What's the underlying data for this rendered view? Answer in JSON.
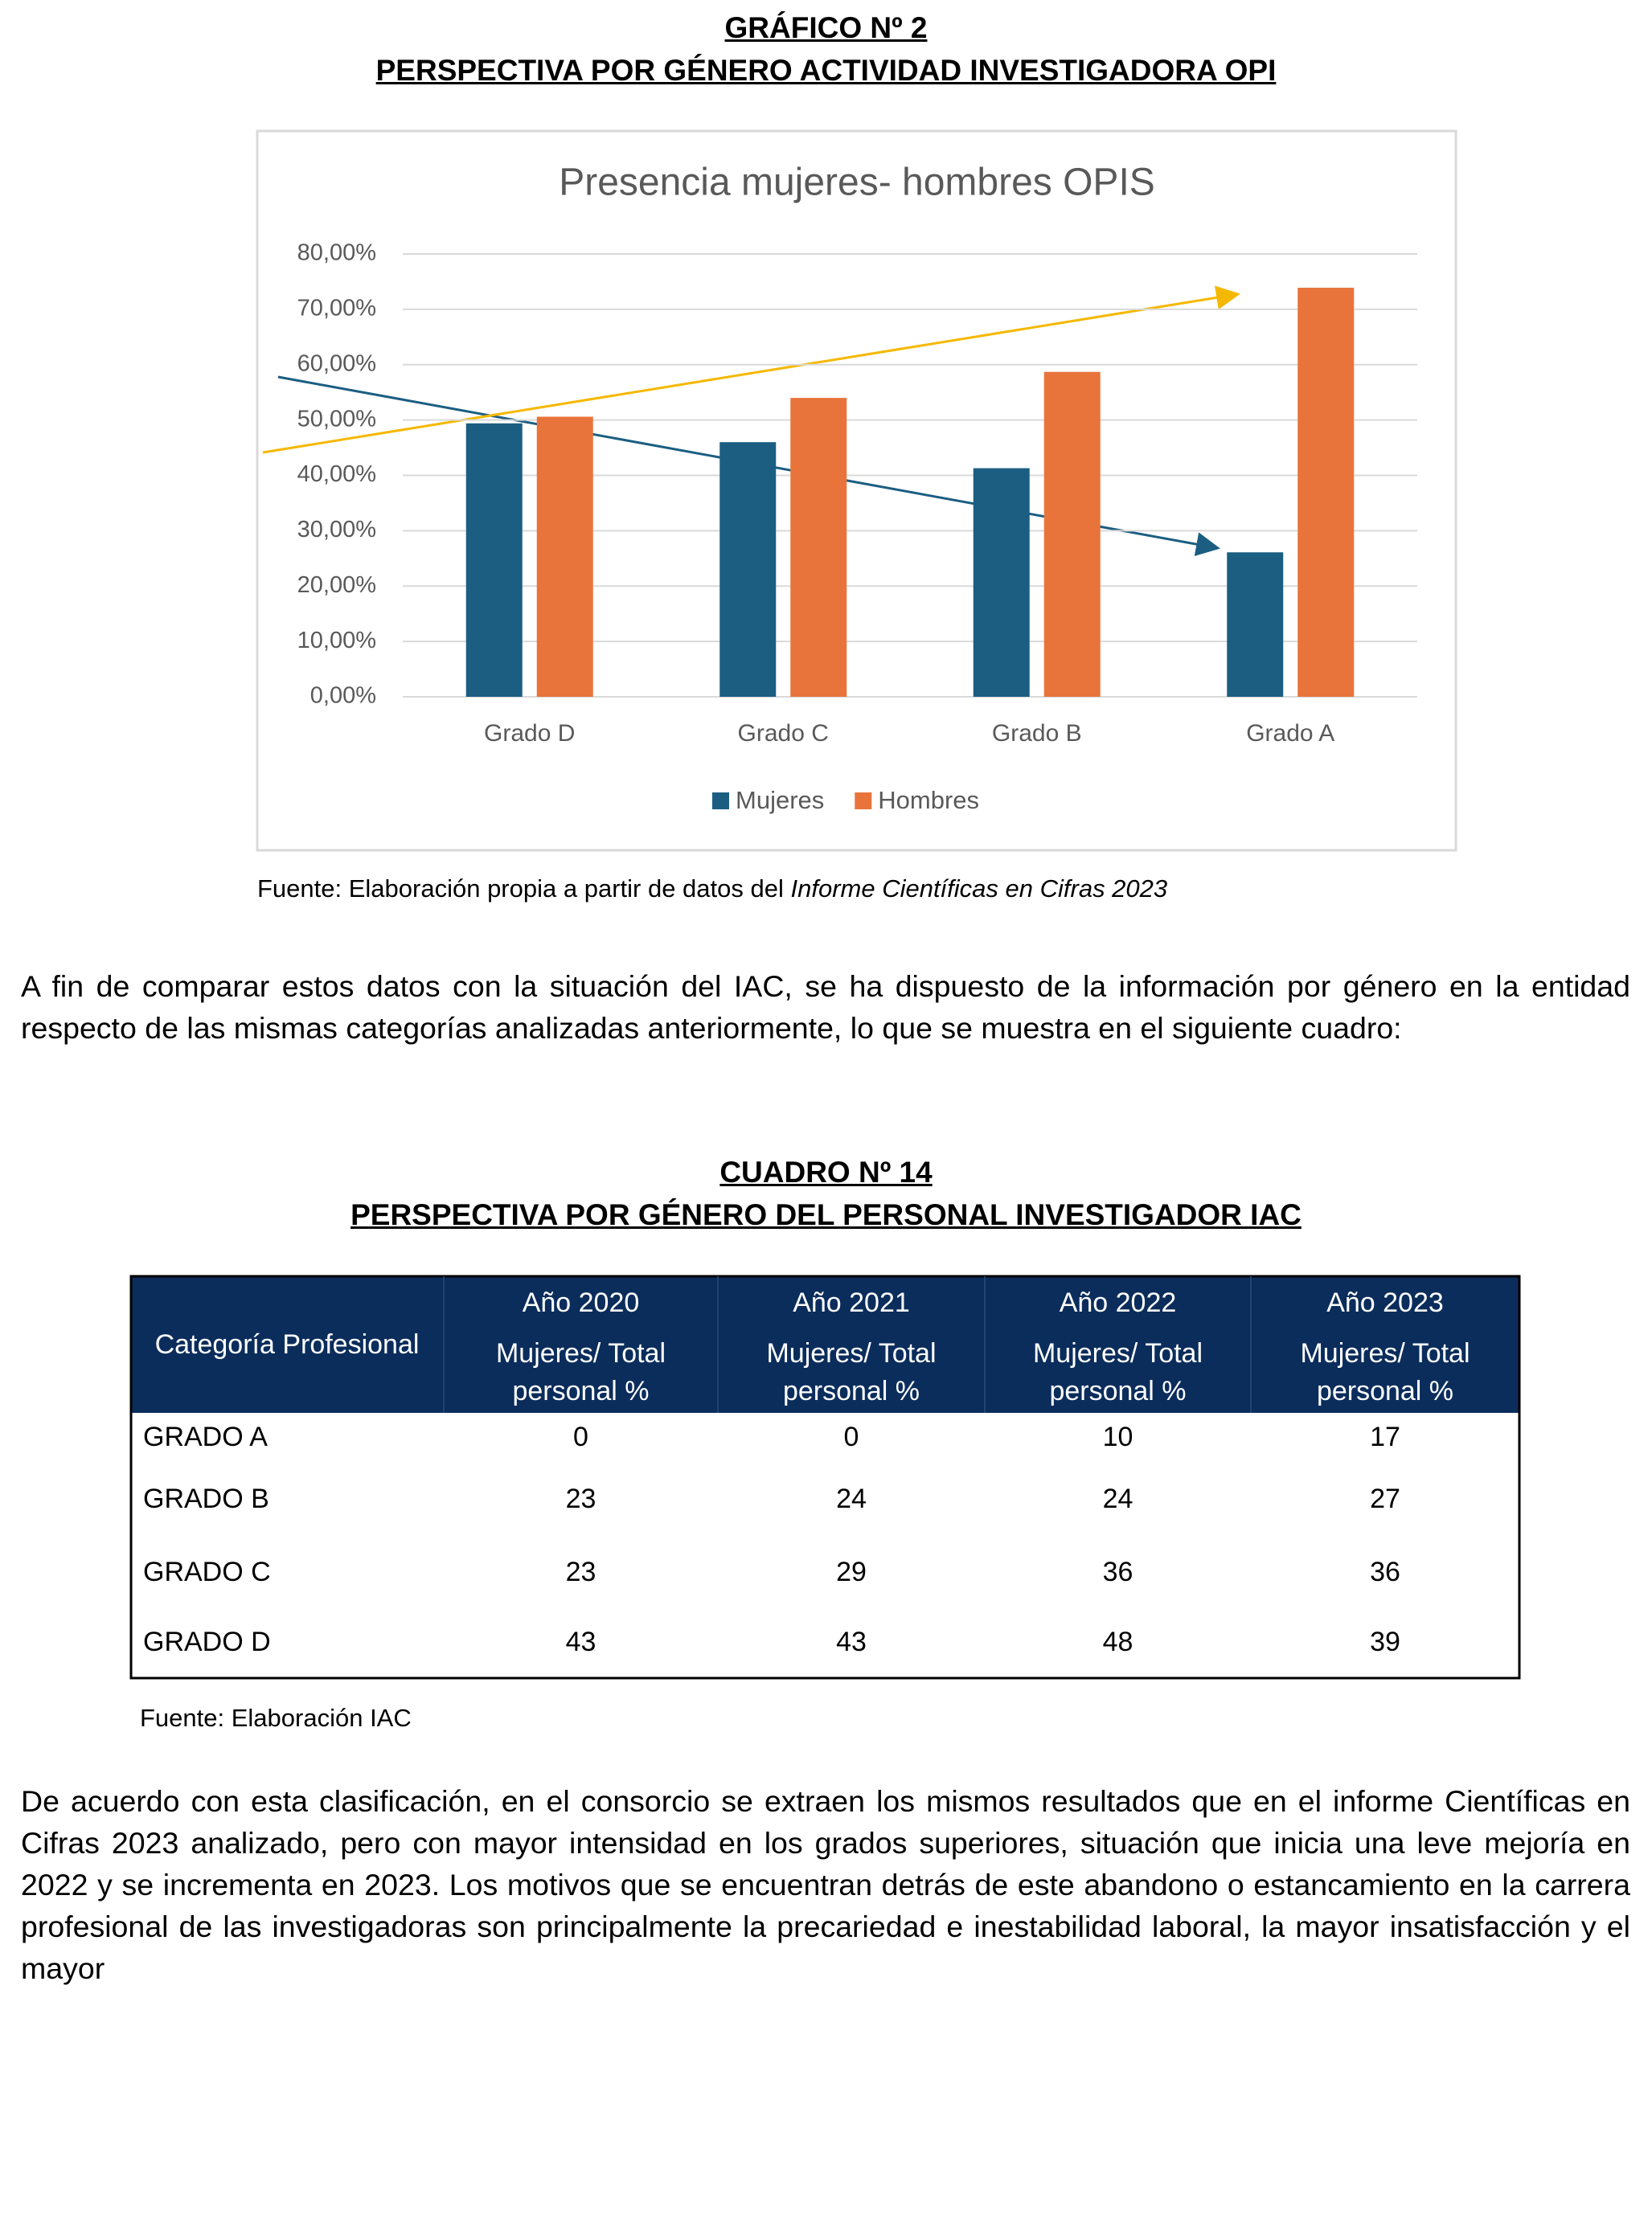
{
  "header": {
    "title": "GRÁFICO Nº 2",
    "subtitle": "PERSPECTIVA POR GÉNERO ACTIVIDAD INVESTIGADORA OPI"
  },
  "chart_data": {
    "type": "bar",
    "title": "Presencia mujeres- hombres OPIS",
    "categories": [
      "Grado D",
      "Grado C",
      "Grado B",
      "Grado A"
    ],
    "series": [
      {
        "name": "Mujeres",
        "color": "#1b5e82",
        "values": [
          49.4,
          46,
          41.3,
          26.1
        ]
      },
      {
        "name": "Hombres",
        "color": "#e8743b",
        "values": [
          50.6,
          54,
          58.7,
          73.9
        ]
      }
    ],
    "ylim": [
      0,
      80
    ],
    "yticks": [
      {
        "value": 0,
        "label": "0,00%"
      },
      {
        "value": 10,
        "label": "10,00%"
      },
      {
        "value": 20,
        "label": "20,00%"
      },
      {
        "value": 30,
        "label": "30,00%"
      },
      {
        "value": 40,
        "label": "40,00%"
      },
      {
        "value": 50,
        "label": "50,00%"
      },
      {
        "value": 60,
        "label": "60,00%"
      },
      {
        "value": 70,
        "label": "70,00%"
      },
      {
        "value": 80,
        "label": "80,00%"
      }
    ],
    "grid": true,
    "legend": "bottom"
  },
  "chart_source": {
    "text": "Fuente: Elaboración propia a partir de datos del ",
    "italic": "Informe Científicas en Cifras 2023"
  },
  "paragraph_1": "A fin de comparar estos datos con la situación del IAC, se ha dispuesto de la información por género en la entidad respecto de las mismas categorías analizadas anteriormente, lo que se muestra en el siguiente cuadro:",
  "table_header": {
    "title": "CUADRO Nº 14",
    "subtitle": "PERSPECTIVA POR GÉNERO DEL PERSONAL INVESTIGADOR IAC"
  },
  "table": {
    "category_label": "Categoría Profesional",
    "columns": [
      {
        "year": "Año 2020",
        "measure": "Mujeres/ Total",
        "unit": "personal %"
      },
      {
        "year": "Año 2021",
        "measure": "Mujeres/ Total",
        "unit": "personal %"
      },
      {
        "year": "Año 2022",
        "measure": "Mujeres/ Total",
        "unit": "personal %"
      },
      {
        "year": "Año 2023",
        "measure": "Mujeres/ Total",
        "unit": "personal %"
      }
    ],
    "rows": [
      [
        "GRADO A",
        0,
        0,
        10,
        17
      ],
      [
        "GRADO B",
        23,
        24,
        24,
        27
      ],
      [
        "GRADO C",
        23,
        29,
        36,
        36
      ],
      [
        "GRADO D",
        43,
        43,
        48,
        39
      ]
    ]
  },
  "table_source": "Fuente: Elaboración IAC",
  "paragraph_2": "De acuerdo con esta clasificación, en el consorcio se extraen los mismos resultados que en el informe Científicas en Cifras 2023 analizado, pero con mayor intensidad en los grados superiores, situación que inicia una leve mejoría en 2022 y se incrementa en 2023. Los motivos que se encuentran detrás de este abandono o estancamiento en la carrera profesional de las investigadoras son principalmente la precariedad e inestabilidad laboral, la mayor insatisfacción y el mayor"
}
